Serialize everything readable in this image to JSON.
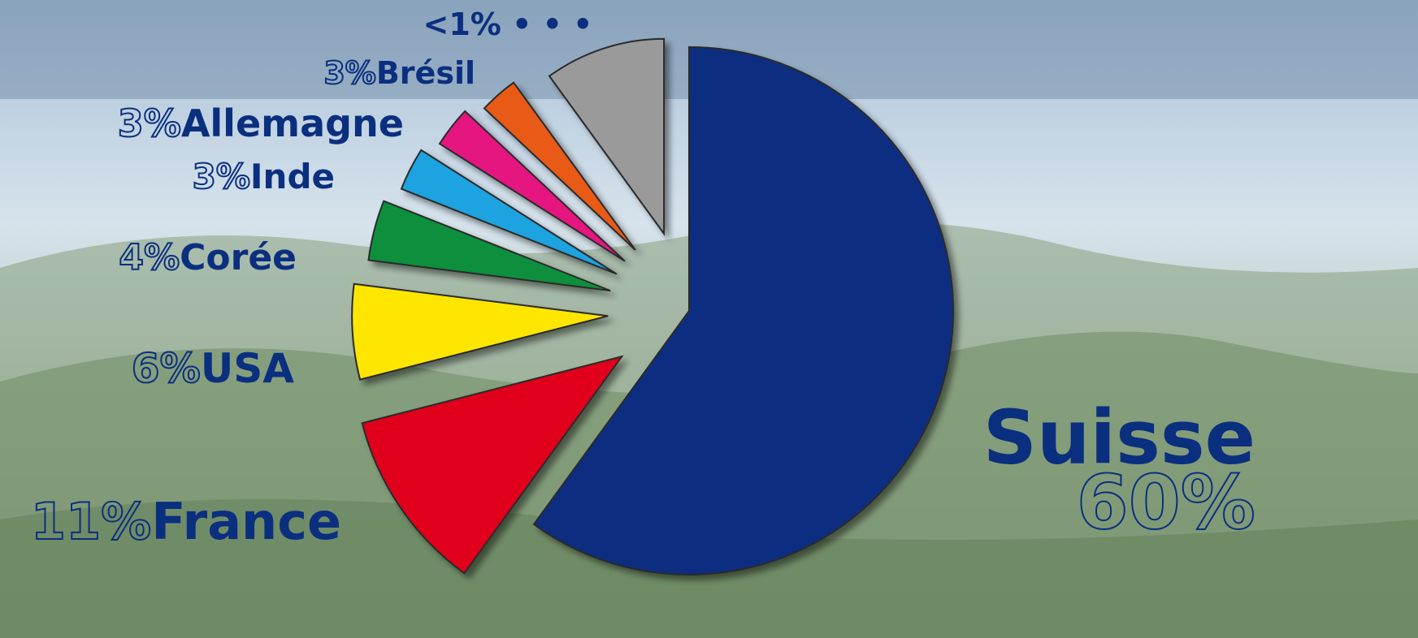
{
  "chart_data": {
    "type": "pie",
    "categories": [
      "Suisse",
      "France",
      "USA",
      "Corée",
      "Inde",
      "Allemagne",
      "Brésil",
      "<1% • • •"
    ],
    "values": [
      60,
      11,
      6,
      4,
      3,
      3,
      3,
      10
    ],
    "value_labels": [
      "60%",
      "11%",
      "6%",
      "4%",
      "3%",
      "3%",
      "3%",
      null
    ],
    "colors": [
      "#0d2f80",
      "#e0001b",
      "#ffe600",
      "#0a8f3c",
      "#1aa3e0",
      "#e5157f",
      "#e85a19",
      "#9a9a9a"
    ]
  }
}
